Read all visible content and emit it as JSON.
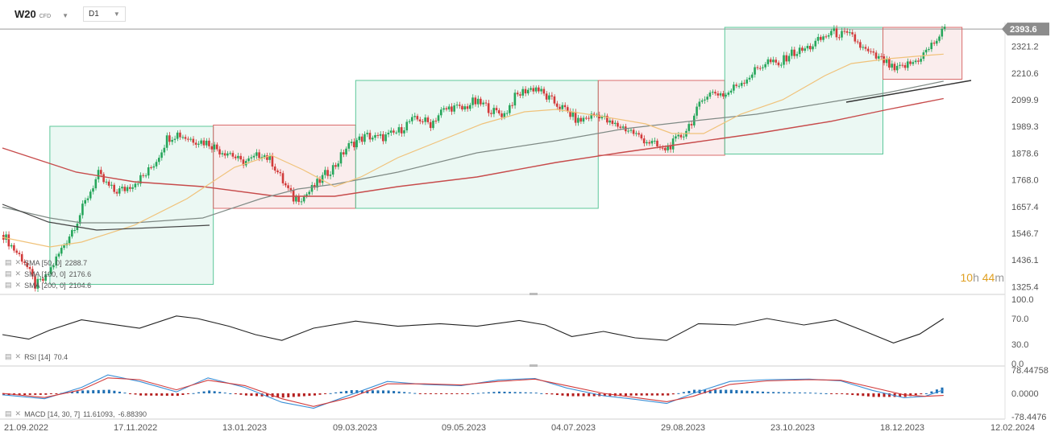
{
  "header": {
    "symbol": "W20",
    "type": "CFD",
    "timeframe": "D1"
  },
  "timer": {
    "hours": "10",
    "h": "h",
    "minutes": "44",
    "m": "m"
  },
  "price": {
    "last": "2393.6"
  },
  "indicators": [
    {
      "label": "SMA [50, 0]",
      "value": "2288.7"
    },
    {
      "label": "SMA [100, 0]",
      "value": "2176.6"
    },
    {
      "label": "SMA [200, 0]",
      "value": "2104.6"
    }
  ],
  "rsi_label": {
    "label": "RSI [14]",
    "value": "70.4"
  },
  "macd_label": {
    "label": "MACD [14, 30, 7]",
    "v1": "11.61093,",
    "v2": "-6.88390"
  },
  "colors": {
    "up": "#26a65b",
    "down": "#d23a3a",
    "sma50": "#f0c27a",
    "sma100": "#7f8a85",
    "sma200": "#c74b4b",
    "macd_line": "#3a8fd6",
    "signal_line": "#d23a3a",
    "green_box": "#5cc79a",
    "red_box": "#d96b6b"
  },
  "chart_data": {
    "type": "candlestick",
    "x_ticks": [
      "21.09.2022",
      "17.11.2022",
      "13.01.2023",
      "09.03.2023",
      "09.05.2023",
      "04.07.2023",
      "29.08.2023",
      "23.10.2023",
      "18.12.2023",
      "12.02.2024"
    ],
    "y_ticks": [
      "2321.2",
      "2210.6",
      "2099.9",
      "1989.3",
      "1878.6",
      "1768.0",
      "1657.4",
      "1546.7",
      "1436.1",
      "1325.4"
    ],
    "ylim": [
      1300,
      2420
    ],
    "path": [
      [
        0,
        1540
      ],
      [
        4,
        1480
      ],
      [
        8,
        1430
      ],
      [
        12,
        1330
      ],
      [
        16,
        1360
      ],
      [
        20,
        1440
      ],
      [
        24,
        1520
      ],
      [
        28,
        1600
      ],
      [
        32,
        1700
      ],
      [
        36,
        1790
      ],
      [
        38,
        1760
      ],
      [
        42,
        1720
      ],
      [
        46,
        1730
      ],
      [
        50,
        1760
      ],
      [
        54,
        1790
      ],
      [
        58,
        1850
      ],
      [
        62,
        1940
      ],
      [
        66,
        1960
      ],
      [
        70,
        1940
      ],
      [
        74,
        1930
      ],
      [
        78,
        1920
      ],
      [
        82,
        1890
      ],
      [
        86,
        1880
      ],
      [
        90,
        1840
      ],
      [
        94,
        1850
      ],
      [
        98,
        1880
      ],
      [
        102,
        1840
      ],
      [
        106,
        1760
      ],
      [
        110,
        1690
      ],
      [
        114,
        1700
      ],
      [
        118,
        1740
      ],
      [
        122,
        1790
      ],
      [
        126,
        1830
      ],
      [
        130,
        1900
      ],
      [
        134,
        1930
      ],
      [
        138,
        1950
      ],
      [
        142,
        1940
      ],
      [
        146,
        1950
      ],
      [
        150,
        1970
      ],
      [
        154,
        2010
      ],
      [
        158,
        2020
      ],
      [
        162,
        2000
      ],
      [
        166,
        2050
      ],
      [
        170,
        2070
      ],
      [
        174,
        2060
      ],
      [
        178,
        2090
      ],
      [
        182,
        2080
      ],
      [
        186,
        2050
      ],
      [
        190,
        2040
      ],
      [
        194,
        2110
      ],
      [
        198,
        2140
      ],
      [
        202,
        2150
      ],
      [
        206,
        2110
      ],
      [
        210,
        2080
      ],
      [
        214,
        2050
      ],
      [
        218,
        2010
      ],
      [
        222,
        2030
      ],
      [
        226,
        2040
      ],
      [
        230,
        2000
      ],
      [
        234,
        1990
      ],
      [
        238,
        1970
      ],
      [
        242,
        1940
      ],
      [
        246,
        1920
      ],
      [
        250,
        1890
      ],
      [
        254,
        1920
      ],
      [
        258,
        1960
      ],
      [
        262,
        2030
      ],
      [
        266,
        2120
      ],
      [
        270,
        2130
      ],
      [
        274,
        2120
      ],
      [
        278,
        2160
      ],
      [
        282,
        2190
      ],
      [
        286,
        2230
      ],
      [
        290,
        2260
      ],
      [
        294,
        2240
      ],
      [
        298,
        2290
      ],
      [
        302,
        2300
      ],
      [
        306,
        2320
      ],
      [
        310,
        2350
      ],
      [
        314,
        2380
      ],
      [
        318,
        2370
      ],
      [
        322,
        2360
      ],
      [
        326,
        2310
      ],
      [
        330,
        2280
      ],
      [
        334,
        2260
      ],
      [
        338,
        2220
      ],
      [
        342,
        2240
      ],
      [
        346,
        2260
      ],
      [
        350,
        2300
      ],
      [
        354,
        2350
      ],
      [
        357,
        2393
      ]
    ],
    "sma50": [
      [
        0,
        1530
      ],
      [
        18,
        1490
      ],
      [
        30,
        1510
      ],
      [
        50,
        1580
      ],
      [
        70,
        1690
      ],
      [
        88,
        1820
      ],
      [
        102,
        1870
      ],
      [
        114,
        1810
      ],
      [
        126,
        1740
      ],
      [
        136,
        1780
      ],
      [
        150,
        1860
      ],
      [
        166,
        1930
      ],
      [
        182,
        2000
      ],
      [
        198,
        2050
      ],
      [
        210,
        2060
      ],
      [
        228,
        2030
      ],
      [
        244,
        2000
      ],
      [
        254,
        1960
      ],
      [
        266,
        1960
      ],
      [
        280,
        2040
      ],
      [
        296,
        2100
      ],
      [
        312,
        2200
      ],
      [
        322,
        2250
      ],
      [
        336,
        2270
      ],
      [
        352,
        2285
      ],
      [
        357,
        2289
      ]
    ],
    "sma100": [
      [
        0,
        1655
      ],
      [
        18,
        1610
      ],
      [
        30,
        1590
      ],
      [
        50,
        1590
      ],
      [
        76,
        1610
      ],
      [
        98,
        1690
      ],
      [
        112,
        1730
      ],
      [
        126,
        1750
      ],
      [
        150,
        1800
      ],
      [
        180,
        1880
      ],
      [
        210,
        1930
      ],
      [
        236,
        1980
      ],
      [
        260,
        2010
      ],
      [
        286,
        2040
      ],
      [
        314,
        2090
      ],
      [
        336,
        2130
      ],
      [
        357,
        2177
      ]
    ],
    "sma200": [
      [
        0,
        1900
      ],
      [
        28,
        1800
      ],
      [
        50,
        1760
      ],
      [
        76,
        1740
      ],
      [
        104,
        1700
      ],
      [
        126,
        1700
      ],
      [
        150,
        1740
      ],
      [
        180,
        1780
      ],
      [
        210,
        1840
      ],
      [
        234,
        1880
      ],
      [
        260,
        1920
      ],
      [
        286,
        1960
      ],
      [
        314,
        2010
      ],
      [
        336,
        2060
      ],
      [
        357,
        2105
      ]
    ],
    "rsi_ticks": [
      "100.0",
      "70.0",
      "30.0",
      "0.0"
    ],
    "rsi": [
      [
        0,
        45
      ],
      [
        10,
        38
      ],
      [
        18,
        52
      ],
      [
        30,
        68
      ],
      [
        40,
        62
      ],
      [
        52,
        55
      ],
      [
        66,
        74
      ],
      [
        74,
        70
      ],
      [
        86,
        58
      ],
      [
        96,
        45
      ],
      [
        106,
        36
      ],
      [
        118,
        55
      ],
      [
        134,
        66
      ],
      [
        150,
        58
      ],
      [
        166,
        62
      ],
      [
        180,
        58
      ],
      [
        196,
        67
      ],
      [
        206,
        60
      ],
      [
        216,
        42
      ],
      [
        228,
        50
      ],
      [
        240,
        40
      ],
      [
        252,
        36
      ],
      [
        264,
        62
      ],
      [
        278,
        60
      ],
      [
        290,
        70
      ],
      [
        304,
        60
      ],
      [
        316,
        68
      ],
      [
        326,
        52
      ],
      [
        338,
        32
      ],
      [
        348,
        46
      ],
      [
        357,
        70
      ]
    ],
    "macd_ticks": [
      "78.44758",
      "0.0000",
      "-78.4476"
    ],
    "macd": [
      [
        0,
        -5
      ],
      [
        16,
        -18
      ],
      [
        30,
        20
      ],
      [
        40,
        62
      ],
      [
        52,
        40
      ],
      [
        66,
        5
      ],
      [
        78,
        52
      ],
      [
        92,
        20
      ],
      [
        106,
        -30
      ],
      [
        118,
        -50
      ],
      [
        132,
        -5
      ],
      [
        146,
        40
      ],
      [
        160,
        30
      ],
      [
        174,
        26
      ],
      [
        188,
        45
      ],
      [
        202,
        50
      ],
      [
        214,
        18
      ],
      [
        228,
        -8
      ],
      [
        240,
        -20
      ],
      [
        252,
        -34
      ],
      [
        262,
        0
      ],
      [
        276,
        40
      ],
      [
        290,
        46
      ],
      [
        306,
        48
      ],
      [
        318,
        42
      ],
      [
        330,
        10
      ],
      [
        342,
        -15
      ],
      [
        350,
        -10
      ],
      [
        357,
        12
      ]
    ],
    "signal": [
      [
        0,
        0
      ],
      [
        16,
        -14
      ],
      [
        30,
        12
      ],
      [
        40,
        52
      ],
      [
        52,
        46
      ],
      [
        66,
        12
      ],
      [
        78,
        44
      ],
      [
        92,
        26
      ],
      [
        106,
        -18
      ],
      [
        118,
        -44
      ],
      [
        132,
        -14
      ],
      [
        146,
        32
      ],
      [
        160,
        32
      ],
      [
        174,
        28
      ],
      [
        188,
        40
      ],
      [
        202,
        48
      ],
      [
        214,
        26
      ],
      [
        228,
        0
      ],
      [
        240,
        -14
      ],
      [
        252,
        -28
      ],
      [
        262,
        -10
      ],
      [
        276,
        30
      ],
      [
        290,
        42
      ],
      [
        306,
        46
      ],
      [
        318,
        44
      ],
      [
        330,
        20
      ],
      [
        342,
        -5
      ],
      [
        350,
        -10
      ],
      [
        357,
        -7
      ]
    ],
    "boxes": [
      {
        "kind": "green",
        "from": 18,
        "to": 80,
        "high": 1990,
        "low": 1335
      },
      {
        "kind": "red",
        "from": 80,
        "to": 134,
        "high": 1995,
        "low": 1650
      },
      {
        "kind": "green",
        "from": 134,
        "to": 226,
        "high": 2180,
        "low": 1650
      },
      {
        "kind": "red",
        "from": 226,
        "to": 274,
        "high": 2180,
        "low": 1870
      },
      {
        "kind": "green",
        "from": 274,
        "to": 334,
        "high": 2400,
        "low": 1875
      },
      {
        "kind": "red",
        "from": 334,
        "to": 364,
        "high": 2400,
        "low": 2185
      }
    ]
  }
}
